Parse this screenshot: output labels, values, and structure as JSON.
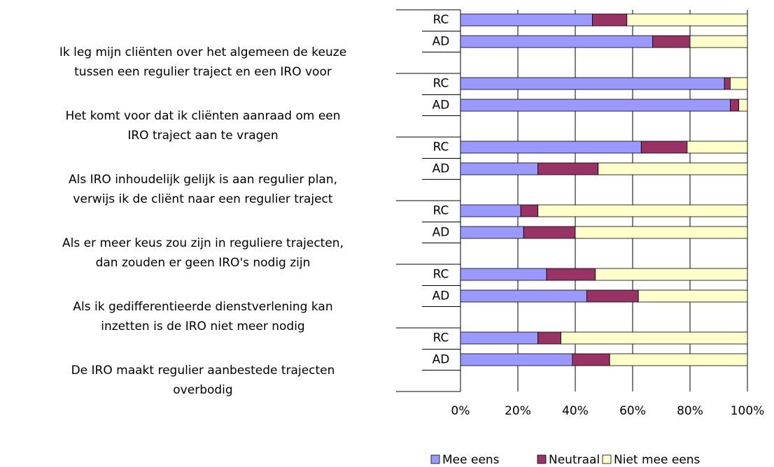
{
  "chart_data": {
    "type": "bar",
    "orientation": "horizontal",
    "stacked": true,
    "groups": [
      {
        "label": [
          "Ik leg mijn cliënten over het algemeen de keuze",
          "tussen een regulier traject en een IRO voor"
        ]
      },
      {
        "label": [
          "Het komt voor dat ik cliënten aanraad om een",
          "IRO traject aan te vragen"
        ]
      },
      {
        "label": [
          "Als IRO inhoudelijk gelijk is aan regulier plan,",
          "verwijs ik de cliënt naar een regulier traject"
        ]
      },
      {
        "label": [
          "Als er meer keus zou zijn in reguliere trajecten,",
          "dan zouden er geen IRO's nodig zijn"
        ]
      },
      {
        "label": [
          "Als ik gedifferentieerde dienstverlening kan",
          "inzetten is de IRO niet meer nodig"
        ]
      },
      {
        "label": [
          "De IRO maakt regulier aanbestede trajecten",
          "overbodig"
        ]
      }
    ],
    "categories": [
      "RC",
      "AD",
      "RC",
      "AD",
      "RC",
      "AD",
      "RC",
      "AD",
      "RC",
      "AD",
      "RC",
      "AD"
    ],
    "series": [
      {
        "name": "Mee eens",
        "color": "#9999ff",
        "values": [
          46,
          67,
          92,
          94,
          63,
          27,
          21,
          22,
          30,
          44,
          27,
          39
        ]
      },
      {
        "name": "Neutraal",
        "color": "#993366",
        "values": [
          12,
          13,
          2,
          3,
          16,
          21,
          6,
          18,
          17,
          18,
          8,
          13
        ]
      },
      {
        "name": "Niet mee eens",
        "color": "#ffffcc",
        "values": [
          42,
          20,
          6,
          3,
          21,
          52,
          73,
          60,
          53,
          38,
          65,
          48
        ]
      }
    ],
    "xlim": [
      0,
      100
    ],
    "xticks": [
      {
        "value": 0,
        "label": "0%"
      },
      {
        "value": 20,
        "label": "20%"
      },
      {
        "value": 40,
        "label": "40%"
      },
      {
        "value": 60,
        "label": "60%"
      },
      {
        "value": 80,
        "label": "80%"
      },
      {
        "value": 100,
        "label": "100%"
      }
    ],
    "grid": true,
    "legend": "bottom"
  }
}
